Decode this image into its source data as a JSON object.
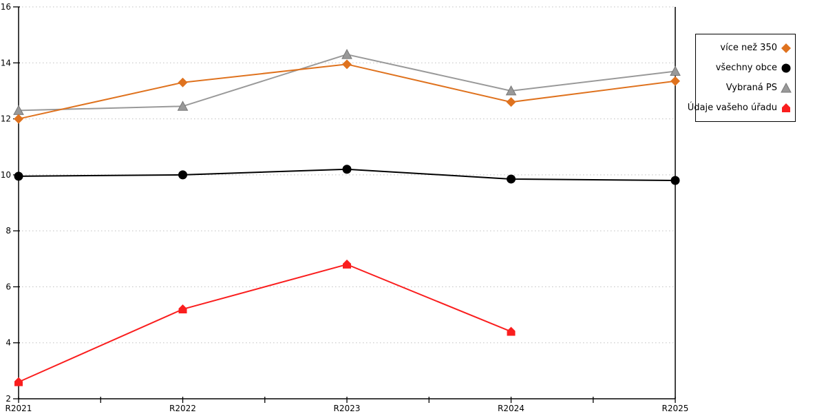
{
  "chart_data": {
    "type": "line",
    "title": "",
    "xlabel": "",
    "ylabel": "",
    "categories": [
      "R2021",
      "R2022",
      "R2023",
      "R2024",
      "R2025"
    ],
    "series": [
      {
        "name": "více než 350",
        "marker": "diamond",
        "color": "#DF721E",
        "values": [
          12.0,
          13.3,
          13.95,
          12.6,
          13.35
        ]
      },
      {
        "name": "všechny obce",
        "marker": "circle",
        "color": "#000000",
        "values": [
          9.95,
          10.0,
          10.2,
          9.85,
          9.8
        ]
      },
      {
        "name": "Vybraná PS",
        "marker": "triangle",
        "color": "#999999",
        "values": [
          12.3,
          12.45,
          14.3,
          13.0,
          13.7
        ]
      },
      {
        "name": "Údaje vašeho úřadu",
        "marker": "pentagon",
        "color": "#FA1E1E",
        "values": [
          2.6,
          5.2,
          6.8,
          4.4,
          null
        ]
      }
    ],
    "ylim": [
      2,
      16
    ],
    "yticks": [
      2,
      4,
      6,
      8,
      10,
      12,
      14,
      16
    ],
    "grid": "horizontal-dotted",
    "gridline_color": "#bfbfbf",
    "axis_color": "#000000",
    "legend_position": "right",
    "x_minor_ticks_between_categories": true
  }
}
